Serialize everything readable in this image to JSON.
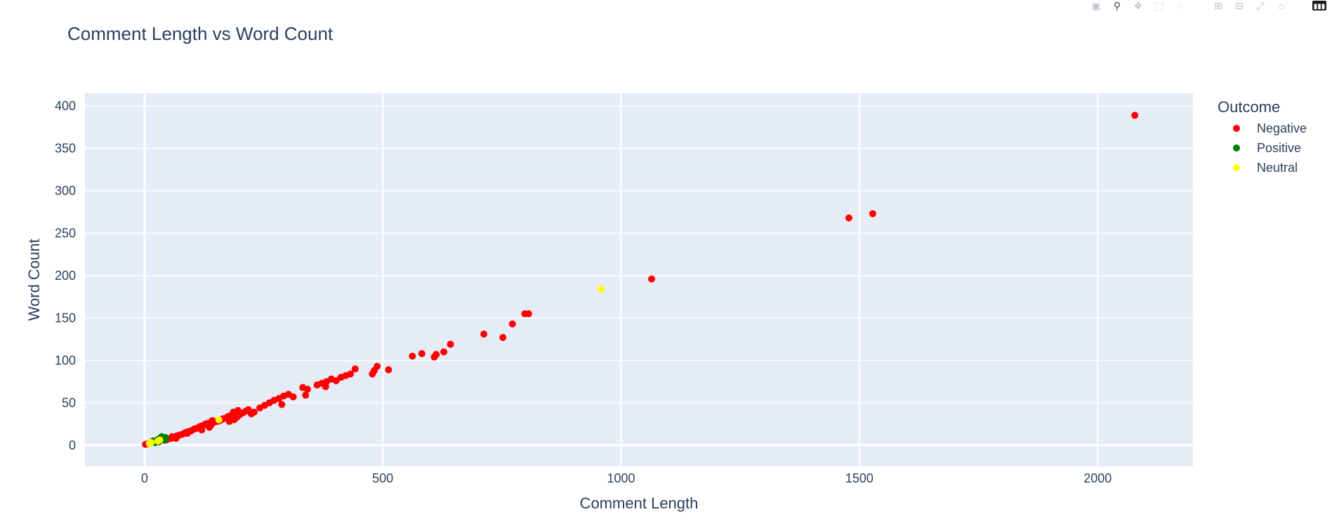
{
  "chart_data": {
    "type": "scatter",
    "title": "Comment Length vs Word Count",
    "xlabel": "Comment Length",
    "ylabel": "Word Count",
    "xlim": [
      -125,
      2200
    ],
    "ylim": [
      -25,
      415
    ],
    "x_ticks": [
      0,
      500,
      1000,
      1500,
      2000
    ],
    "y_ticks": [
      0,
      50,
      100,
      150,
      200,
      250,
      300,
      350,
      400
    ],
    "grid": true,
    "legend": {
      "title": "Outcome",
      "placement": "top-right"
    },
    "series": [
      {
        "name": "Negative",
        "color": "#ff0000",
        "points": [
          [
            2,
            1
          ],
          [
            8,
            2
          ],
          [
            14,
            3
          ],
          [
            20,
            4
          ],
          [
            26,
            4
          ],
          [
            32,
            5
          ],
          [
            40,
            6
          ],
          [
            48,
            7
          ],
          [
            55,
            8
          ],
          [
            62,
            9
          ],
          [
            68,
            11
          ],
          [
            74,
            12
          ],
          [
            80,
            13
          ],
          [
            86,
            15
          ],
          [
            92,
            16
          ],
          [
            98,
            17
          ],
          [
            104,
            19
          ],
          [
            110,
            20
          ],
          [
            116,
            22
          ],
          [
            122,
            23
          ],
          [
            128,
            25
          ],
          [
            134,
            26
          ],
          [
            140,
            24
          ],
          [
            146,
            27
          ],
          [
            152,
            28
          ],
          [
            158,
            29
          ],
          [
            164,
            31
          ],
          [
            170,
            32
          ],
          [
            176,
            34
          ],
          [
            182,
            35
          ],
          [
            188,
            30
          ],
          [
            194,
            33
          ],
          [
            200,
            36
          ],
          [
            206,
            38
          ],
          [
            212,
            40
          ],
          [
            218,
            42
          ],
          [
            224,
            37
          ],
          [
            230,
            39
          ],
          [
            136,
            21
          ],
          [
            58,
            10
          ],
          [
            44,
            6
          ],
          [
            66,
            8
          ],
          [
            90,
            14
          ],
          [
            120,
            18
          ],
          [
            142,
            29
          ],
          [
            178,
            28
          ],
          [
            196,
            41
          ],
          [
            186,
            39
          ],
          [
            242,
            44
          ],
          [
            252,
            47
          ],
          [
            262,
            50
          ],
          [
            272,
            53
          ],
          [
            282,
            55
          ],
          [
            292,
            58
          ],
          [
            302,
            60
          ],
          [
            312,
            57
          ],
          [
            288,
            48
          ],
          [
            332,
            68
          ],
          [
            342,
            66
          ],
          [
            338,
            59
          ],
          [
            362,
            71
          ],
          [
            372,
            73
          ],
          [
            382,
            75
          ],
          [
            392,
            78
          ],
          [
            402,
            76
          ],
          [
            380,
            69
          ],
          [
            412,
            80
          ],
          [
            422,
            82
          ],
          [
            432,
            84
          ],
          [
            442,
            90
          ],
          [
            478,
            84
          ],
          [
            482,
            88
          ],
          [
            488,
            93
          ],
          [
            512,
            89
          ],
          [
            562,
            105
          ],
          [
            582,
            108
          ],
          [
            608,
            104
          ],
          [
            612,
            107
          ],
          [
            628,
            110
          ],
          [
            642,
            119
          ],
          [
            712,
            131
          ],
          [
            752,
            127
          ],
          [
            772,
            143
          ],
          [
            798,
            155
          ],
          [
            806,
            155
          ],
          [
            1064,
            196
          ],
          [
            1478,
            268
          ],
          [
            1528,
            273
          ],
          [
            2078,
            389
          ]
        ]
      },
      {
        "name": "Positive",
        "color": "#008000",
        "points": [
          [
            18,
            5
          ],
          [
            26,
            6
          ],
          [
            32,
            8
          ],
          [
            38,
            7
          ],
          [
            44,
            9
          ],
          [
            30,
            4
          ],
          [
            22,
            3
          ],
          [
            36,
            10
          ],
          [
            42,
            6
          ]
        ]
      },
      {
        "name": "Neutral",
        "color": "#ffff00",
        "points": [
          [
            10,
            2
          ],
          [
            14,
            3
          ],
          [
            28,
            5
          ],
          [
            32,
            6
          ],
          [
            156,
            30
          ],
          [
            958,
            184
          ]
        ]
      }
    ]
  },
  "modebar": {
    "buttons": [
      {
        "name": "camera-icon",
        "glyph": "▣"
      },
      {
        "name": "zoom-icon",
        "glyph": "⚲"
      },
      {
        "name": "pan-icon",
        "glyph": "✥"
      },
      {
        "name": "box-select-icon",
        "glyph": "⬚"
      },
      {
        "name": "lasso-icon",
        "glyph": "◌"
      },
      {
        "name": "zoom-in-icon",
        "glyph": "⊞"
      },
      {
        "name": "zoom-out-icon",
        "glyph": "⊟"
      },
      {
        "name": "autoscale-icon",
        "glyph": "⤢"
      },
      {
        "name": "reset-axes-icon",
        "glyph": "⌂"
      }
    ]
  }
}
